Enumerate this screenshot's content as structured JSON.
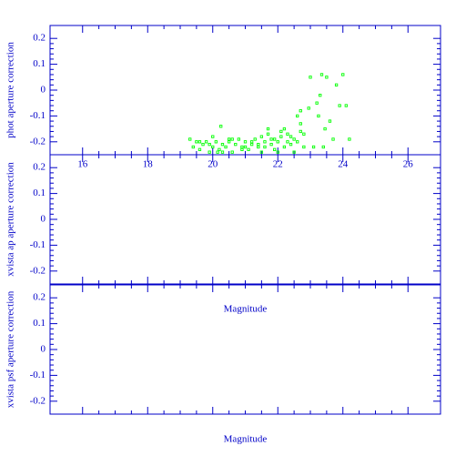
{
  "chart_data": [
    {
      "type": "scatter",
      "y_label": "phot aperture correction",
      "color": "#00ff00",
      "xlim": [
        15,
        27
      ],
      "ylim": [
        -0.25,
        0.25
      ],
      "xticks": [
        16,
        18,
        20,
        22,
        24,
        26
      ],
      "yticks": [
        0.2,
        0.1,
        0,
        -0.1,
        -0.2
      ],
      "show_xtick_labels": true,
      "x": [
        19.3,
        19.4,
        19.5,
        19.6,
        19.7,
        19.8,
        19.9,
        20.0,
        20.1,
        20.2,
        20.25,
        20.3,
        20.4,
        20.5,
        20.6,
        20.7,
        20.8,
        20.9,
        21.0,
        21.1,
        21.2,
        21.3,
        21.4,
        21.5,
        21.6,
        21.7,
        21.8,
        21.9,
        22.0,
        22.1,
        22.2,
        22.3,
        22.4,
        22.5,
        22.6,
        22.7,
        22.8,
        19.6,
        20.0,
        20.3,
        20.6,
        20.9,
        21.2,
        21.5,
        21.7,
        21.9,
        22.1,
        22.3,
        22.5,
        22.7,
        21.6,
        21.8,
        22.0,
        22.2,
        22.4,
        19.9,
        20.15,
        20.5,
        21.0,
        21.4,
        22.6,
        22.7,
        22.8,
        23.0,
        23.1,
        23.2,
        23.3,
        23.35,
        23.4,
        23.5,
        23.6,
        23.7,
        23.8,
        23.9,
        24.0,
        24.1,
        24.2,
        23.45,
        22.95,
        23.25
      ],
      "y": [
        -0.19,
        -0.22,
        -0.2,
        -0.23,
        -0.21,
        -0.2,
        -0.24,
        -0.22,
        -0.2,
        -0.23,
        -0.14,
        -0.21,
        -0.22,
        -0.2,
        -0.24,
        -0.21,
        -0.19,
        -0.22,
        -0.2,
        -0.23,
        -0.21,
        -0.19,
        -0.22,
        -0.18,
        -0.2,
        -0.17,
        -0.21,
        -0.19,
        -0.2,
        -0.18,
        -0.22,
        -0.17,
        -0.21,
        -0.19,
        -0.2,
        -0.16,
        -0.22,
        -0.2,
        -0.18,
        -0.24,
        -0.19,
        -0.23,
        -0.2,
        -0.24,
        -0.15,
        -0.23,
        -0.16,
        -0.2,
        -0.24,
        -0.13,
        -0.22,
        -0.19,
        -0.24,
        -0.15,
        -0.18,
        -0.21,
        -0.24,
        -0.19,
        -0.22,
        -0.21,
        -0.1,
        -0.08,
        -0.17,
        0.05,
        -0.22,
        -0.05,
        -0.02,
        0.06,
        -0.22,
        0.05,
        -0.12,
        -0.19,
        0.02,
        -0.06,
        0.06,
        -0.06,
        -0.19,
        -0.15,
        -0.07,
        -0.1
      ]
    },
    {
      "type": "scatter",
      "y_label": "xvista ap aperture correction",
      "x_label": "Magnitude",
      "color": "#00ff00",
      "xlim": [
        15,
        27
      ],
      "ylim": [
        -0.25,
        0.25
      ],
      "xticks": [
        16,
        18,
        20,
        22,
        24,
        26
      ],
      "yticks": [
        0.2,
        0.1,
        0,
        -0.1,
        -0.2
      ],
      "show_xtick_labels": false,
      "x": [],
      "y": []
    },
    {
      "type": "scatter",
      "y_label": "xvista psf aperture correction",
      "x_label": "Magnitude",
      "color": "#00ff00",
      "xlim": [
        15,
        27
      ],
      "ylim": [
        -0.25,
        0.25
      ],
      "xticks": [
        16,
        18,
        20,
        22,
        24,
        26
      ],
      "yticks": [
        0.2,
        0.1,
        0,
        -0.1,
        -0.2
      ],
      "show_xtick_labels": false,
      "x": [],
      "y": []
    }
  ]
}
